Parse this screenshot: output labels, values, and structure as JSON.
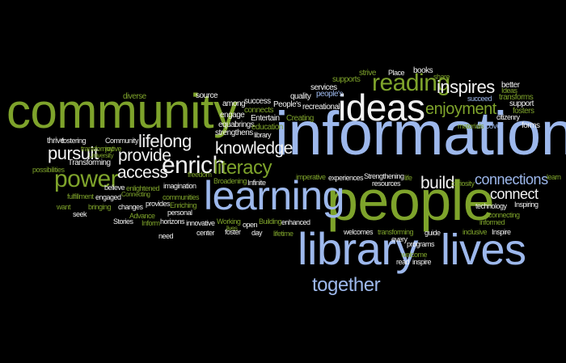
{
  "colors": {
    "green": "#7ea32b",
    "blue": "#9db8ec",
    "white": "#f2f2f2",
    "background": "#000000"
  },
  "words": {
    "community": "community",
    "information": "information",
    "people": "people",
    "learning": "learning",
    "ideas": "ideas",
    "library": "library",
    "lives": "lives",
    "together": "together",
    "reading": "reading",
    "enrich": "enrich",
    "literacy": "literacy",
    "power": "power",
    "inspires": "inspires",
    "enjoyment": "enjoyment",
    "connections": "connections",
    "connect": "connect",
    "knowledge": "knowledge",
    "lifelong": "lifelong",
    "pursuit": "pursuit",
    "access": "access",
    "provide": "provide",
    "build": "build",
    "books": "books",
    "share": "share",
    "succeed": "succeed",
    "transforms": "transforms",
    "strive": "strive",
    "place": "Place",
    "supports": "supports",
    "better": "better",
    "ideas_small": "Ideas",
    "peoples": "people's",
    "services": "services",
    "quality": "quality",
    "recreational": "recreational",
    "citizenry": "citizenry",
    "discover": "discover",
    "fosters": "fosters",
    "forms": "forms",
    "support": "support",
    "materials": "materials",
    "creating": "Creating",
    "peoples_cap": "People's",
    "source": "source",
    "among": "among",
    "success": "success",
    "connects": "connects",
    "engage": "engage",
    "brings": "brings",
    "education": "education",
    "equal": "equal",
    "entertain": "Entertain",
    "library_small": "library",
    "strengthens": "strengthens",
    "diverse": "diverse",
    "community_small": "Community",
    "university": "University",
    "transformative": "transformative",
    "joy": "joy",
    "thrive": "thrive",
    "fostering": "fostering",
    "transforming": "Transforming",
    "possibilities": "possibilities",
    "fulfillment": "fulfillment",
    "engaged": "engaged",
    "want": "want",
    "bringing": "bringing",
    "seek": "seek",
    "stories": "Stories",
    "changes": "changes",
    "advance": "Advance",
    "inform": "Inform",
    "believe": "believe",
    "enlightened": "enlightened",
    "connecting": "Connecting",
    "communities": "communities",
    "provides": "provides",
    "enriching": "Enriching",
    "imagination": "imagination",
    "personal": "personal",
    "freedom": "freedom",
    "horizons": "horizons",
    "innovative": "innovative",
    "need": "need",
    "center": "center",
    "foster": "foster",
    "working": "Working",
    "lives_small": "lives",
    "broadening": "Broadening",
    "infinite": "Infinite",
    "open": "open",
    "day": "day",
    "building": "Building",
    "lifetime": "lifetime",
    "enhanced": "enhanced",
    "imperative": "imperative",
    "experiences": "experiences",
    "strengthening": "Strengthening",
    "life": "life",
    "resources": "resources",
    "welcomes": "welcomes",
    "transforming_small": "transforming",
    "every": "every",
    "programs": "programs",
    "welcome": "welcome",
    "read": "read",
    "inspire": "inspire",
    "guide": "guide",
    "inclusive": "inclusive",
    "informed": "informed",
    "inspire_cap": "Inspire",
    "curiosity": "curiosity",
    "technology": "technology",
    "connecting_small": "connecting",
    "inspiring": "Inspiring",
    "learn": "learn"
  }
}
